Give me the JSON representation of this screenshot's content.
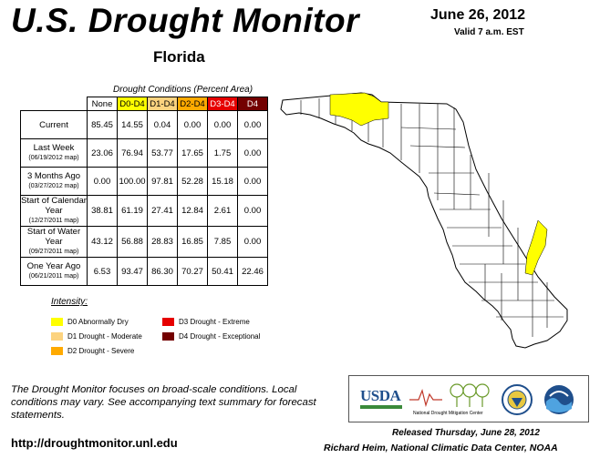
{
  "header": {
    "title": "U.S. Drought Monitor",
    "state": "Florida",
    "date": "June 26, 2012",
    "valid": "Valid 7 a.m. EST"
  },
  "table": {
    "caption": "Drought Conditions (Percent Area)",
    "columns": [
      "None",
      "D0-D4",
      "D1-D4",
      "D2-D4",
      "D3-D4",
      "D4"
    ],
    "column_colors": [
      "#ffffff",
      "#ffff00",
      "#fcd37f",
      "#ffaa00",
      "#e60000",
      "#730000"
    ],
    "rows": [
      {
        "label": "Current",
        "sub": "",
        "values": [
          "85.45",
          "14.55",
          "0.04",
          "0.00",
          "0.00",
          "0.00"
        ]
      },
      {
        "label": "Last Week",
        "sub": "(06/19/2012 map)",
        "values": [
          "23.06",
          "76.94",
          "53.77",
          "17.65",
          "1.75",
          "0.00"
        ]
      },
      {
        "label": "3 Months Ago",
        "sub": "(03/27/2012 map)",
        "values": [
          "0.00",
          "100.00",
          "97.81",
          "52.28",
          "15.18",
          "0.00"
        ]
      },
      {
        "label": "Start of Calendar Year",
        "sub": "(12/27/2011 map)",
        "values": [
          "38.81",
          "61.19",
          "27.41",
          "12.84",
          "2.61",
          "0.00"
        ]
      },
      {
        "label": "Start of Water Year",
        "sub": "(09/27/2011 map)",
        "values": [
          "43.12",
          "56.88",
          "28.83",
          "16.85",
          "7.85",
          "0.00"
        ]
      },
      {
        "label": "One Year Ago",
        "sub": "(06/21/2011 map)",
        "values": [
          "6.53",
          "93.47",
          "86.30",
          "70.27",
          "50.41",
          "22.46"
        ]
      }
    ]
  },
  "legend": {
    "title": "Intensity:",
    "items": [
      {
        "label": "D0 Abnormally Dry",
        "color": "#ffff00"
      },
      {
        "label": "D1 Drought - Moderate",
        "color": "#fcd37f"
      },
      {
        "label": "D2 Drought - Severe",
        "color": "#ffaa00"
      },
      {
        "label": "D3 Drought - Extreme",
        "color": "#e60000"
      },
      {
        "label": "D4 Drought - Exceptional",
        "color": "#730000"
      }
    ]
  },
  "footer": {
    "note": "The Drought Monitor focuses on broad-scale conditions. Local conditions may vary. See accompanying text summary for forecast statements.",
    "url": "http://droughtmonitor.unl.edu",
    "released": "Released Thursday, June 28, 2012",
    "author": "Richard Heim, National Climatic Data Center, NOAA"
  },
  "logos": {
    "usda": "USDA",
    "ndmc": "National Drought Mitigation Center"
  },
  "map": {
    "region": "Florida",
    "drought_areas": [
      {
        "category": "D0",
        "location": "western panhandle",
        "color": "#ffff00"
      },
      {
        "category": "D0",
        "location": "southwest peninsula",
        "color": "#ffff00"
      }
    ]
  }
}
